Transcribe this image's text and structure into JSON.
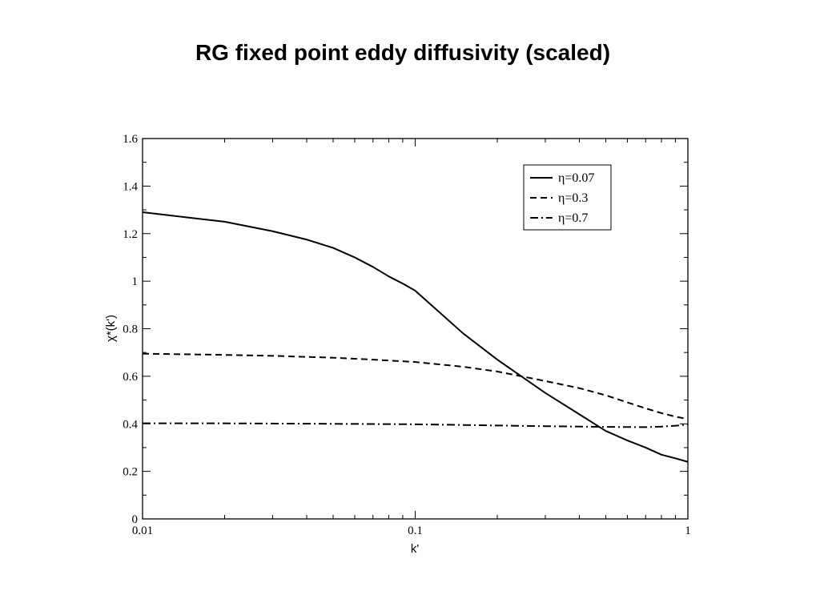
{
  "slide": {
    "title": "RG fixed point eddy diffusivity (scaled)"
  },
  "chart_data": {
    "type": "line",
    "title": "",
    "xlabel": "k'",
    "ylabel": "χ*(k')",
    "xscale": "log",
    "xlim": [
      0.01,
      1
    ],
    "ylim": [
      0,
      1.6
    ],
    "xticks": [
      0.01,
      0.1,
      1
    ],
    "xtick_labels": [
      "0.01",
      "0.1",
      "1"
    ],
    "yticks": [
      0,
      0.2,
      0.4,
      0.6,
      0.8,
      1,
      1.2,
      1.4,
      1.6
    ],
    "ytick_labels": [
      "0",
      "0.2",
      "0.4",
      "0.6",
      "0.8",
      "1",
      "1.2",
      "1.4",
      "1.6"
    ],
    "grid": false,
    "legend_position": "top-right",
    "series": [
      {
        "name": "η=0.07",
        "dash": "solid",
        "color": "#000000",
        "x": [
          0.01,
          0.02,
          0.03,
          0.04,
          0.05,
          0.06,
          0.07,
          0.08,
          0.09,
          0.1,
          0.15,
          0.2,
          0.3,
          0.4,
          0.5,
          0.6,
          0.7,
          0.8,
          0.9,
          1.0
        ],
        "y": [
          1.29,
          1.25,
          1.21,
          1.175,
          1.14,
          1.1,
          1.06,
          1.02,
          0.99,
          0.96,
          0.78,
          0.67,
          0.53,
          0.44,
          0.37,
          0.33,
          0.3,
          0.27,
          0.255,
          0.24
        ]
      },
      {
        "name": "η=0.3",
        "dash": "dashed",
        "color": "#000000",
        "x": [
          0.01,
          0.02,
          0.03,
          0.05,
          0.07,
          0.1,
          0.15,
          0.2,
          0.3,
          0.4,
          0.5,
          0.6,
          0.7,
          0.8,
          0.9,
          1.0
        ],
        "y": [
          0.695,
          0.69,
          0.686,
          0.678,
          0.67,
          0.66,
          0.64,
          0.62,
          0.58,
          0.55,
          0.52,
          0.49,
          0.465,
          0.445,
          0.43,
          0.42
        ]
      },
      {
        "name": "η=0.7",
        "dash": "dashdot",
        "color": "#000000",
        "x": [
          0.01,
          0.02,
          0.05,
          0.1,
          0.2,
          0.3,
          0.5,
          0.7,
          0.8,
          0.9,
          1.0
        ],
        "y": [
          0.402,
          0.402,
          0.4,
          0.398,
          0.393,
          0.39,
          0.387,
          0.386,
          0.388,
          0.392,
          0.397
        ]
      }
    ]
  }
}
